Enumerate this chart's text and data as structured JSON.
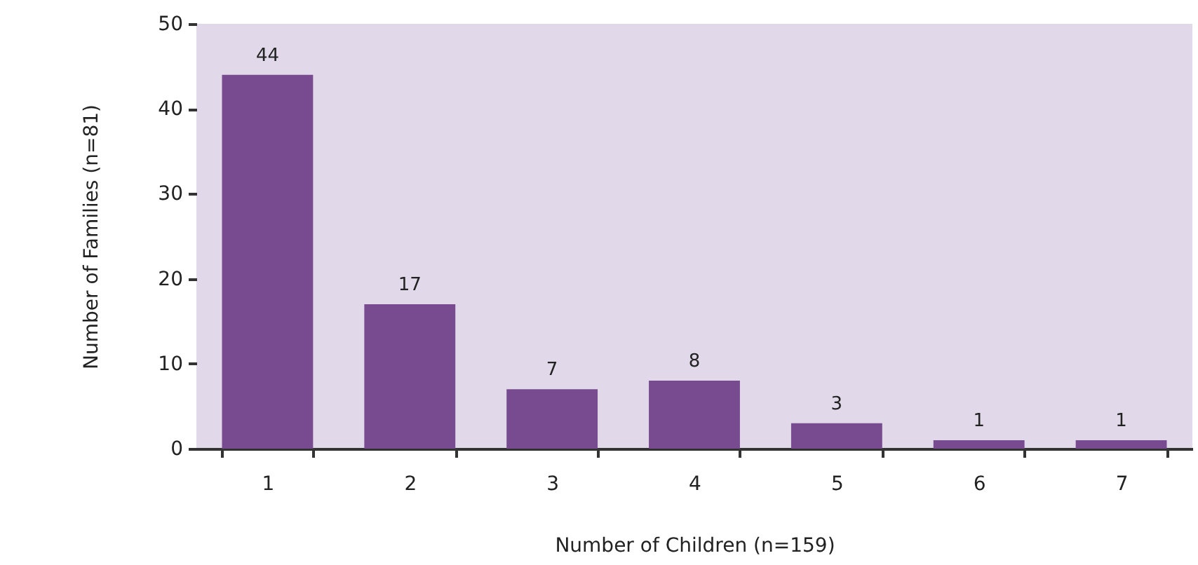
{
  "chart_data": {
    "type": "bar",
    "xlabel": "Number of Children (n=159)",
    "ylabel": "Number of Families (n=81)",
    "categories": [
      "1",
      "2",
      "3",
      "4",
      "5",
      "6",
      "7"
    ],
    "values": [
      44,
      17,
      7,
      8,
      3,
      1,
      1
    ],
    "color": "#784a90",
    "ylim": [
      0,
      50
    ],
    "yticks": [
      0,
      10,
      20,
      30,
      40,
      50
    ],
    "data_labels": true
  }
}
